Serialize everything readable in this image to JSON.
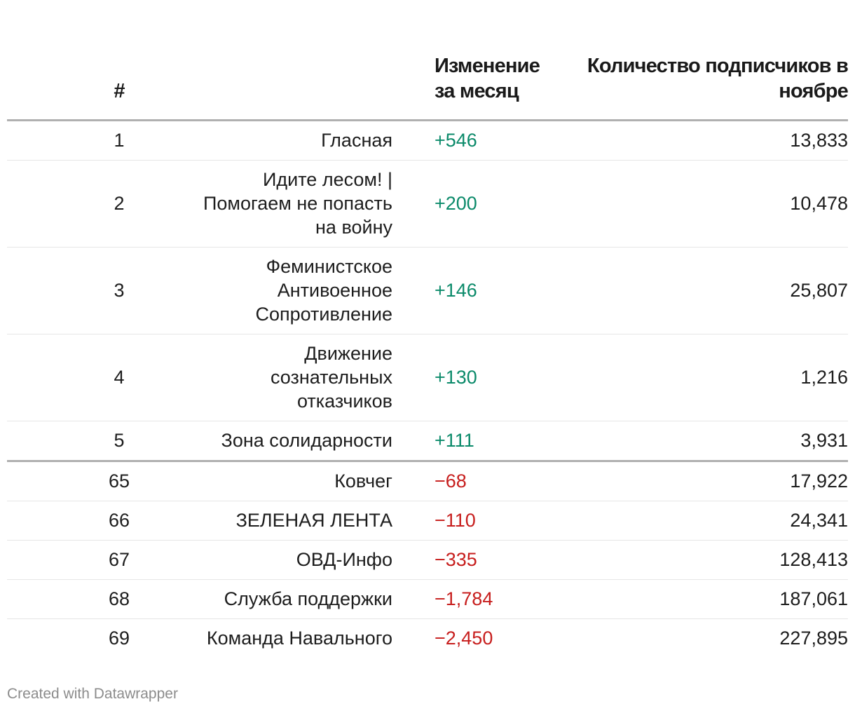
{
  "chart_data": {
    "type": "table",
    "columns": [
      "#",
      "",
      "Изменение за месяц",
      "Количество подписчиков в ноябре"
    ],
    "rows": [
      {
        "rank": "1",
        "name": "Гласная",
        "change": "+546",
        "change_value": 546,
        "subscribers": "13,833",
        "subscribers_value": 13833
      },
      {
        "rank": "2",
        "name": "Идите лесом! | Помогаем не попасть на войну",
        "change": "+200",
        "change_value": 200,
        "subscribers": "10,478",
        "subscribers_value": 10478
      },
      {
        "rank": "3",
        "name": "Феминистское Антивоенное Сопротивление",
        "change": "+146",
        "change_value": 146,
        "subscribers": "25,807",
        "subscribers_value": 25807
      },
      {
        "rank": "4",
        "name": "Движение сознательных отказчиков",
        "change": "+130",
        "change_value": 130,
        "subscribers": "1,216",
        "subscribers_value": 1216
      },
      {
        "rank": "5",
        "name": "Зона солидарности",
        "change": "+111",
        "change_value": 111,
        "subscribers": "3,931",
        "subscribers_value": 3931
      },
      {
        "rank": "65",
        "name": "Ковчег",
        "change": "−68",
        "change_value": -68,
        "subscribers": "17,922",
        "subscribers_value": 17922
      },
      {
        "rank": "66",
        "name": "ЗЕЛЕНАЯ ЛЕНТА",
        "change": "−110",
        "change_value": -110,
        "subscribers": "24,341",
        "subscribers_value": 24341
      },
      {
        "rank": "67",
        "name": "ОВД-Инфо",
        "change": "−335",
        "change_value": -335,
        "subscribers": "128,413",
        "subscribers_value": 128413
      },
      {
        "rank": "68",
        "name": "Служба поддержки",
        "change": "−1,784",
        "change_value": -1784,
        "subscribers": "187,061",
        "subscribers_value": 187061
      },
      {
        "rank": "69",
        "name": "Команда Навального",
        "change": "−2,450",
        "change_value": -2450,
        "subscribers": "227,895",
        "subscribers_value": 227895
      }
    ],
    "colors": {
      "positive": "#0b8a6a",
      "negative": "#c71e1d"
    }
  },
  "footer": {
    "credit": "Created with Datawrapper"
  }
}
